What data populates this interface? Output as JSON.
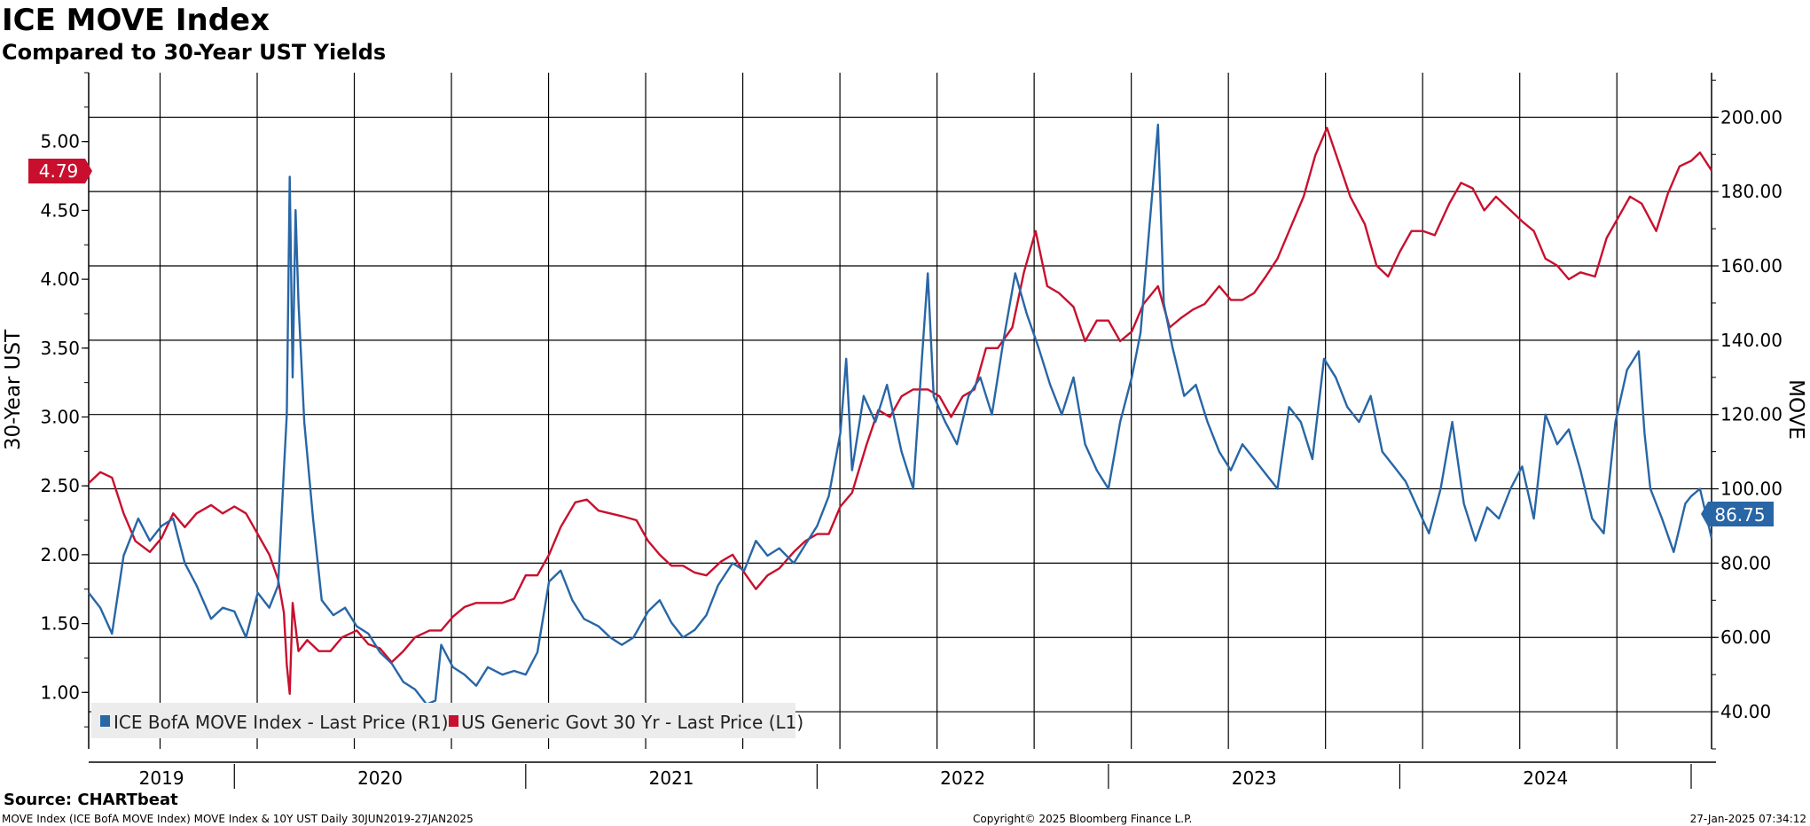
{
  "title": "ICE MOVE Index",
  "subtitle": "Compared to 30-Year UST Yields",
  "source": "Source: CHARTbeat",
  "footer": {
    "left": "MOVE Index (ICE BofA MOVE Index) MOVE Index & 10Y UST  Daily 30JUN2019-27JAN2025",
    "center": "Copyright© 2025 Bloomberg Finance L.P.",
    "right": "27-Jan-2025 07:34:12"
  },
  "colors": {
    "move": "#2866a6",
    "ust": "#c8102e",
    "grid": "#000000",
    "legend_bg": "#ececec"
  },
  "chart_data": {
    "type": "line",
    "x_range": [
      2019.5,
      2025.07
    ],
    "x_years": [
      "2019",
      "2020",
      "2021",
      "2022",
      "2023",
      "2024"
    ],
    "left_axis": {
      "label": "30-Year UST",
      "range": [
        0.59,
        5.5
      ],
      "ticks": [
        "1.00",
        "1.50",
        "2.00",
        "2.50",
        "3.00",
        "3.50",
        "4.00",
        "4.50",
        "5.00"
      ]
    },
    "right_axis": {
      "label": "MOVE",
      "range": [
        30,
        212
      ],
      "ticks": [
        "40.00",
        "60.00",
        "80.00",
        "100.00",
        "120.00",
        "140.00",
        "160.00",
        "180.00",
        "200.00"
      ]
    },
    "series": [
      {
        "name": "ICE BofA MOVE Index - Last Price (R1)",
        "axis": "right",
        "last_value": "86.75",
        "points": [
          [
            2019.5,
            72
          ],
          [
            2019.54,
            68
          ],
          [
            2019.58,
            61
          ],
          [
            2019.62,
            82
          ],
          [
            2019.67,
            92
          ],
          [
            2019.71,
            86
          ],
          [
            2019.75,
            90
          ],
          [
            2019.79,
            92
          ],
          [
            2019.83,
            80
          ],
          [
            2019.87,
            74
          ],
          [
            2019.92,
            65
          ],
          [
            2019.96,
            68
          ],
          [
            2020.0,
            67
          ],
          [
            2020.04,
            60
          ],
          [
            2020.08,
            72
          ],
          [
            2020.12,
            68
          ],
          [
            2020.15,
            74
          ],
          [
            2020.17,
            105
          ],
          [
            2020.18,
            120
          ],
          [
            2020.19,
            184
          ],
          [
            2020.2,
            130
          ],
          [
            2020.21,
            175
          ],
          [
            2020.22,
            150
          ],
          [
            2020.24,
            118
          ],
          [
            2020.27,
            92
          ],
          [
            2020.3,
            70
          ],
          [
            2020.34,
            66
          ],
          [
            2020.38,
            68
          ],
          [
            2020.42,
            63
          ],
          [
            2020.46,
            61
          ],
          [
            2020.5,
            56
          ],
          [
            2020.54,
            53
          ],
          [
            2020.58,
            48
          ],
          [
            2020.62,
            46
          ],
          [
            2020.66,
            42
          ],
          [
            2020.69,
            43
          ],
          [
            2020.71,
            58
          ],
          [
            2020.75,
            52
          ],
          [
            2020.79,
            50
          ],
          [
            2020.83,
            47
          ],
          [
            2020.87,
            52
          ],
          [
            2020.92,
            50
          ],
          [
            2020.96,
            51
          ],
          [
            2021.0,
            50
          ],
          [
            2021.04,
            56
          ],
          [
            2021.08,
            75
          ],
          [
            2021.12,
            78
          ],
          [
            2021.16,
            70
          ],
          [
            2021.2,
            65
          ],
          [
            2021.25,
            63
          ],
          [
            2021.29,
            60
          ],
          [
            2021.33,
            58
          ],
          [
            2021.37,
            60
          ],
          [
            2021.42,
            67
          ],
          [
            2021.46,
            70
          ],
          [
            2021.5,
            64
          ],
          [
            2021.54,
            60
          ],
          [
            2021.58,
            62
          ],
          [
            2021.62,
            66
          ],
          [
            2021.66,
            74
          ],
          [
            2021.71,
            80
          ],
          [
            2021.75,
            78
          ],
          [
            2021.79,
            86
          ],
          [
            2021.83,
            82
          ],
          [
            2021.87,
            84
          ],
          [
            2021.92,
            80
          ],
          [
            2021.96,
            85
          ],
          [
            2022.0,
            90
          ],
          [
            2022.04,
            98
          ],
          [
            2022.08,
            115
          ],
          [
            2022.1,
            135
          ],
          [
            2022.12,
            105
          ],
          [
            2022.16,
            125
          ],
          [
            2022.2,
            118
          ],
          [
            2022.24,
            128
          ],
          [
            2022.29,
            110
          ],
          [
            2022.33,
            100
          ],
          [
            2022.36,
            135
          ],
          [
            2022.38,
            158
          ],
          [
            2022.4,
            125
          ],
          [
            2022.44,
            118
          ],
          [
            2022.48,
            112
          ],
          [
            2022.52,
            125
          ],
          [
            2022.56,
            130
          ],
          [
            2022.6,
            120
          ],
          [
            2022.64,
            140
          ],
          [
            2022.68,
            158
          ],
          [
            2022.72,
            147
          ],
          [
            2022.76,
            138
          ],
          [
            2022.8,
            128
          ],
          [
            2022.84,
            120
          ],
          [
            2022.88,
            130
          ],
          [
            2022.92,
            112
          ],
          [
            2022.96,
            105
          ],
          [
            2023.0,
            100
          ],
          [
            2023.04,
            118
          ],
          [
            2023.08,
            130
          ],
          [
            2023.11,
            142
          ],
          [
            2023.17,
            198
          ],
          [
            2023.19,
            150
          ],
          [
            2023.22,
            138
          ],
          [
            2023.26,
            125
          ],
          [
            2023.3,
            128
          ],
          [
            2023.34,
            118
          ],
          [
            2023.38,
            110
          ],
          [
            2023.42,
            105
          ],
          [
            2023.46,
            112
          ],
          [
            2023.5,
            108
          ],
          [
            2023.54,
            104
          ],
          [
            2023.58,
            100
          ],
          [
            2023.62,
            122
          ],
          [
            2023.66,
            118
          ],
          [
            2023.7,
            108
          ],
          [
            2023.74,
            135
          ],
          [
            2023.78,
            130
          ],
          [
            2023.82,
            122
          ],
          [
            2023.86,
            118
          ],
          [
            2023.9,
            125
          ],
          [
            2023.94,
            110
          ],
          [
            2023.98,
            106
          ],
          [
            2024.02,
            102
          ],
          [
            2024.06,
            95
          ],
          [
            2024.1,
            88
          ],
          [
            2024.14,
            100
          ],
          [
            2024.18,
            118
          ],
          [
            2024.22,
            96
          ],
          [
            2024.26,
            86
          ],
          [
            2024.3,
            95
          ],
          [
            2024.34,
            92
          ],
          [
            2024.38,
            100
          ],
          [
            2024.42,
            106
          ],
          [
            2024.46,
            92
          ],
          [
            2024.5,
            120
          ],
          [
            2024.54,
            112
          ],
          [
            2024.58,
            116
          ],
          [
            2024.62,
            105
          ],
          [
            2024.66,
            92
          ],
          [
            2024.7,
            88
          ],
          [
            2024.74,
            118
          ],
          [
            2024.78,
            132
          ],
          [
            2024.82,
            137
          ],
          [
            2024.84,
            115
          ],
          [
            2024.86,
            100
          ],
          [
            2024.9,
            92
          ],
          [
            2024.94,
            83
          ],
          [
            2024.98,
            96
          ],
          [
            2025.0,
            98
          ],
          [
            2025.03,
            100
          ],
          [
            2025.07,
            86.75
          ]
        ]
      },
      {
        "name": "US Generic Govt 30 Yr - Last Price (L1)",
        "axis": "left",
        "last_value": "4.79",
        "points": [
          [
            2019.5,
            2.52
          ],
          [
            2019.54,
            2.6
          ],
          [
            2019.58,
            2.56
          ],
          [
            2019.62,
            2.3
          ],
          [
            2019.66,
            2.1
          ],
          [
            2019.71,
            2.02
          ],
          [
            2019.75,
            2.12
          ],
          [
            2019.79,
            2.3
          ],
          [
            2019.83,
            2.2
          ],
          [
            2019.87,
            2.3
          ],
          [
            2019.92,
            2.36
          ],
          [
            2019.96,
            2.3
          ],
          [
            2020.0,
            2.35
          ],
          [
            2020.04,
            2.3
          ],
          [
            2020.08,
            2.15
          ],
          [
            2020.12,
            2.0
          ],
          [
            2020.15,
            1.82
          ],
          [
            2020.17,
            1.58
          ],
          [
            2020.18,
            1.2
          ],
          [
            2020.19,
            0.99
          ],
          [
            2020.2,
            1.65
          ],
          [
            2020.22,
            1.3
          ],
          [
            2020.25,
            1.38
          ],
          [
            2020.29,
            1.3
          ],
          [
            2020.33,
            1.3
          ],
          [
            2020.37,
            1.4
          ],
          [
            2020.42,
            1.45
          ],
          [
            2020.46,
            1.35
          ],
          [
            2020.5,
            1.32
          ],
          [
            2020.54,
            1.22
          ],
          [
            2020.58,
            1.3
          ],
          [
            2020.62,
            1.4
          ],
          [
            2020.67,
            1.45
          ],
          [
            2020.71,
            1.45
          ],
          [
            2020.75,
            1.55
          ],
          [
            2020.79,
            1.62
          ],
          [
            2020.83,
            1.65
          ],
          [
            2020.87,
            1.65
          ],
          [
            2020.92,
            1.65
          ],
          [
            2020.96,
            1.68
          ],
          [
            2021.0,
            1.85
          ],
          [
            2021.04,
            1.85
          ],
          [
            2021.08,
            2.0
          ],
          [
            2021.12,
            2.2
          ],
          [
            2021.17,
            2.38
          ],
          [
            2021.21,
            2.4
          ],
          [
            2021.25,
            2.32
          ],
          [
            2021.29,
            2.3
          ],
          [
            2021.33,
            2.28
          ],
          [
            2021.38,
            2.25
          ],
          [
            2021.42,
            2.1
          ],
          [
            2021.46,
            2.0
          ],
          [
            2021.5,
            1.92
          ],
          [
            2021.54,
            1.92
          ],
          [
            2021.58,
            1.87
          ],
          [
            2021.62,
            1.85
          ],
          [
            2021.67,
            1.95
          ],
          [
            2021.71,
            2.0
          ],
          [
            2021.75,
            1.87
          ],
          [
            2021.79,
            1.75
          ],
          [
            2021.83,
            1.85
          ],
          [
            2021.87,
            1.9
          ],
          [
            2021.92,
            2.02
          ],
          [
            2021.96,
            2.1
          ],
          [
            2022.0,
            2.15
          ],
          [
            2022.04,
            2.15
          ],
          [
            2022.08,
            2.35
          ],
          [
            2022.12,
            2.45
          ],
          [
            2022.17,
            2.8
          ],
          [
            2022.21,
            3.05
          ],
          [
            2022.25,
            3.0
          ],
          [
            2022.29,
            3.15
          ],
          [
            2022.33,
            3.2
          ],
          [
            2022.38,
            3.2
          ],
          [
            2022.42,
            3.15
          ],
          [
            2022.46,
            3.0
          ],
          [
            2022.5,
            3.15
          ],
          [
            2022.54,
            3.2
          ],
          [
            2022.58,
            3.5
          ],
          [
            2022.62,
            3.5
          ],
          [
            2022.67,
            3.65
          ],
          [
            2022.71,
            4.05
          ],
          [
            2022.75,
            4.35
          ],
          [
            2022.79,
            3.95
          ],
          [
            2022.83,
            3.9
          ],
          [
            2022.88,
            3.8
          ],
          [
            2022.92,
            3.55
          ],
          [
            2022.96,
            3.7
          ],
          [
            2023.0,
            3.7
          ],
          [
            2023.04,
            3.55
          ],
          [
            2023.08,
            3.62
          ],
          [
            2023.12,
            3.82
          ],
          [
            2023.17,
            3.95
          ],
          [
            2023.21,
            3.65
          ],
          [
            2023.25,
            3.72
          ],
          [
            2023.29,
            3.78
          ],
          [
            2023.33,
            3.82
          ],
          [
            2023.38,
            3.95
          ],
          [
            2023.42,
            3.85
          ],
          [
            2023.46,
            3.85
          ],
          [
            2023.5,
            3.9
          ],
          [
            2023.54,
            4.02
          ],
          [
            2023.58,
            4.15
          ],
          [
            2023.62,
            4.35
          ],
          [
            2023.67,
            4.6
          ],
          [
            2023.71,
            4.9
          ],
          [
            2023.75,
            5.1
          ],
          [
            2023.79,
            4.85
          ],
          [
            2023.83,
            4.6
          ],
          [
            2023.88,
            4.4
          ],
          [
            2023.92,
            4.1
          ],
          [
            2023.96,
            4.02
          ],
          [
            2024.0,
            4.2
          ],
          [
            2024.04,
            4.35
          ],
          [
            2024.08,
            4.35
          ],
          [
            2024.12,
            4.32
          ],
          [
            2024.17,
            4.55
          ],
          [
            2024.21,
            4.7
          ],
          [
            2024.25,
            4.66
          ],
          [
            2024.29,
            4.5
          ],
          [
            2024.33,
            4.6
          ],
          [
            2024.38,
            4.5
          ],
          [
            2024.42,
            4.42
          ],
          [
            2024.46,
            4.35
          ],
          [
            2024.5,
            4.15
          ],
          [
            2024.54,
            4.1
          ],
          [
            2024.58,
            4.0
          ],
          [
            2024.62,
            4.05
          ],
          [
            2024.67,
            4.02
          ],
          [
            2024.71,
            4.3
          ],
          [
            2024.75,
            4.45
          ],
          [
            2024.79,
            4.6
          ],
          [
            2024.83,
            4.55
          ],
          [
            2024.88,
            4.35
          ],
          [
            2024.92,
            4.62
          ],
          [
            2024.96,
            4.82
          ],
          [
            2025.0,
            4.86
          ],
          [
            2025.03,
            4.92
          ],
          [
            2025.07,
            4.79
          ]
        ]
      }
    ]
  }
}
